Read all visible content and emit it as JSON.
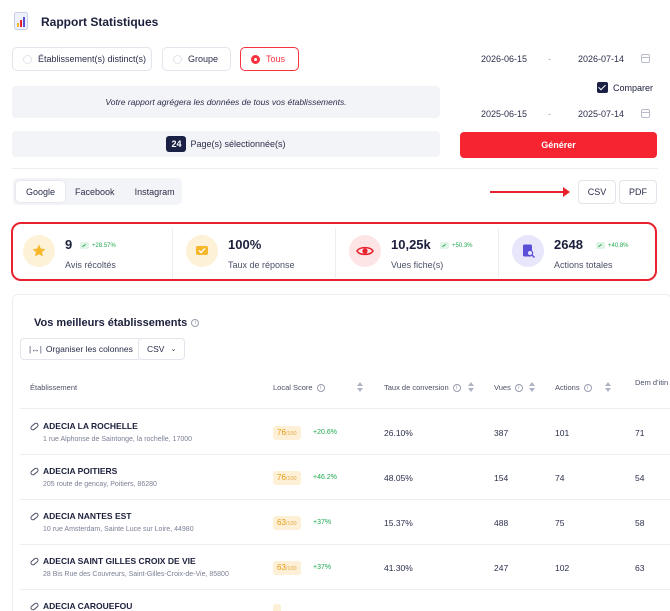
{
  "header": {
    "title": "Rapport Statistiques",
    "logo_icon": "report-chart-icon"
  },
  "scope": {
    "options": [
      {
        "label": "Établissement(s) distinct(s)",
        "selected": false
      },
      {
        "label": "Groupe",
        "selected": false
      },
      {
        "label": "Tous",
        "selected": true
      }
    ],
    "info_text": "Votre rapport agrégera les données de tous vos établissements.",
    "pages_count": "24",
    "pages_label": "Page(s) sélectionnée(s)"
  },
  "dates": {
    "main": {
      "start": "2026-06-15",
      "end": "2026-07-14",
      "separator": "-"
    },
    "compare_label": "Comparer",
    "compare_checked": true,
    "compare_range": {
      "start": "2025-06-15",
      "end": "2025-07-14",
      "separator": "-"
    },
    "generate_label": "Générer"
  },
  "platform_tabs": [
    {
      "label": "Google",
      "active": true
    },
    {
      "label": "Facebook",
      "active": false
    },
    {
      "label": "Instagram",
      "active": false
    }
  ],
  "export": {
    "csv": "CSV",
    "pdf": "PDF"
  },
  "kpis": [
    {
      "value": "9",
      "trend": "+28.57%",
      "label": "Avis récoltés",
      "icon": "star-icon",
      "color": "#f6b72a",
      "bg": "#fdf1d8"
    },
    {
      "value": "100%",
      "trend": "",
      "label": "Taux de réponse",
      "icon": "reply-chat-icon",
      "color": "#f6b72a",
      "bg": "#fdf1d8"
    },
    {
      "value": "10,25k",
      "trend": "+50.3%",
      "label": "Vues fiche(s)",
      "icon": "eye-icon",
      "color": "#e8222c",
      "bg": "#fde4e5"
    },
    {
      "value": "2648",
      "trend": "+40.8%",
      "label": "Actions totales",
      "icon": "document-search-icon",
      "color": "#5b4fd8",
      "bg": "#e8e6fb"
    }
  ],
  "best": {
    "title": "Vos meilleurs établissements",
    "organize_label": "Organiser les colonnes",
    "csv_label": "CSV",
    "columns": {
      "establishment": "Établissement",
      "local_score": "Local Score",
      "conversion": "Taux de conversion",
      "views": "Vues",
      "actions": "Actions",
      "itinerary": "Dem d'itin"
    },
    "score_suffix": "/100",
    "rows": [
      {
        "name": "ADECIA LA ROCHELLE",
        "address": "1 rue Alphonse de Saintonge, la rochelle, 17000",
        "score": "76",
        "delta": "+20.6%",
        "conversion": "26.10%",
        "views": "387",
        "actions": "101",
        "itinerary": "71"
      },
      {
        "name": "ADECIA POITIERS",
        "address": "205 route de gencay, Poitiers, 86280",
        "score": "76",
        "delta": "+46.2%",
        "conversion": "48.05%",
        "views": "154",
        "actions": "74",
        "itinerary": "54"
      },
      {
        "name": "ADECIA NANTES EST",
        "address": "10 rue Amsterdam, Sainte Luce sur Loire, 44980",
        "score": "63",
        "delta": "+37%",
        "conversion": "15.37%",
        "views": "488",
        "actions": "75",
        "itinerary": "58"
      },
      {
        "name": "ADECIA SAINT GILLES CROIX DE VIE",
        "address": "28 Bis Rue des Couvreurs, Saint-Gilles-Croix-de-Vie, 85800",
        "score": "63",
        "delta": "+37%",
        "conversion": "41.30%",
        "views": "247",
        "actions": "102",
        "itinerary": "63"
      },
      {
        "name": "ADECIA CAROUEFOU",
        "address": "",
        "score": "",
        "delta": "",
        "conversion": "",
        "views": "",
        "actions": "",
        "itinerary": ""
      }
    ]
  }
}
